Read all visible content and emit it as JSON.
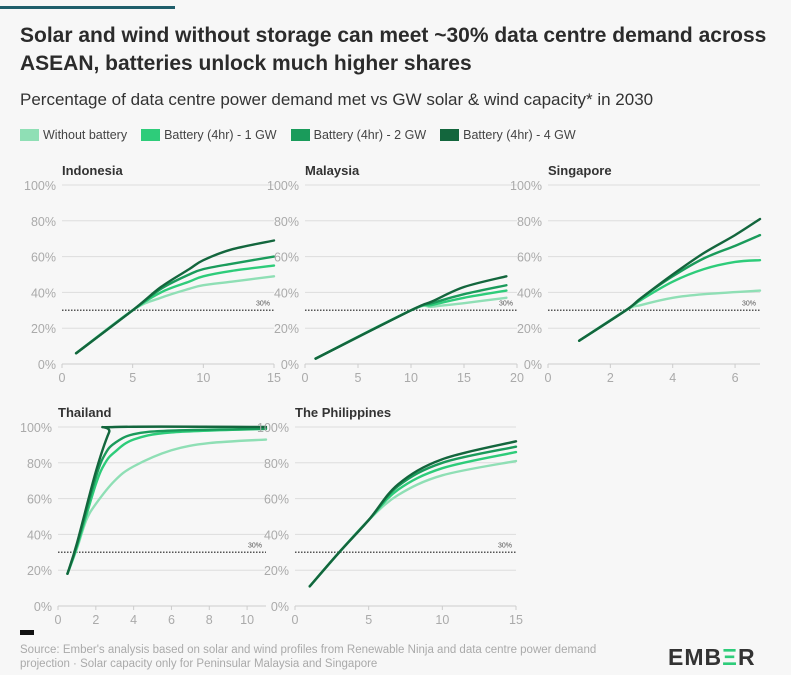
{
  "title": "Solar and wind without storage can meet ~30% data centre demand across ASEAN, batteries unlock much higher shares",
  "subtitle": "Percentage of data centre power demand met vs GW solar & wind capacity* in 2030",
  "source": "Source: Ember's analysis based on solar and wind profiles from Renewable Ninja and data centre power demand projection · Solar capacity only for Peninsular Malaysia and Singapore",
  "logo": "EMBER",
  "colors": {
    "accent": "#1f5e6b",
    "none": "#8fdfb5",
    "b1": "#2ecc7a",
    "b2": "#1a9b5b",
    "b4": "#13663d"
  },
  "chart_data": {
    "type": "line",
    "legend": [
      "Without battery",
      "Battery (4hr) - 1 GW",
      "Battery (4hr) - 2 GW",
      "Battery (4hr) - 4 GW"
    ],
    "legend_placement": "top-left",
    "reference_line": {
      "value": 30,
      "label": "30%"
    },
    "ylim": [
      0,
      100
    ],
    "yticks": [
      "0%",
      "20%",
      "40%",
      "60%",
      "80%",
      "100%"
    ],
    "panels": [
      {
        "name": "Indonesia",
        "xlim": [
          0,
          15
        ],
        "xticks": [
          0,
          5,
          10,
          15
        ],
        "series": [
          {
            "name": "Without battery",
            "points": [
              [
                1,
                6
              ],
              [
                5,
                30
              ],
              [
                7,
                37
              ],
              [
                9,
                42
              ],
              [
                10,
                44
              ],
              [
                12,
                46
              ],
              [
                15,
                49
              ]
            ]
          },
          {
            "name": "Battery (4hr) - 1 GW",
            "points": [
              [
                1,
                6
              ],
              [
                5,
                30
              ],
              [
                7,
                40
              ],
              [
                9,
                46
              ],
              [
                10,
                49
              ],
              [
                12,
                52
              ],
              [
                15,
                55
              ]
            ]
          },
          {
            "name": "Battery (4hr) - 2 GW",
            "points": [
              [
                1,
                6
              ],
              [
                5,
                30
              ],
              [
                7,
                42
              ],
              [
                9,
                50
              ],
              [
                10,
                53
              ],
              [
                12,
                56
              ],
              [
                15,
                60
              ]
            ]
          },
          {
            "name": "Battery (4hr) - 4 GW",
            "points": [
              [
                1,
                6
              ],
              [
                5,
                30
              ],
              [
                7,
                43
              ],
              [
                9,
                53
              ],
              [
                10,
                58
              ],
              [
                12,
                64
              ],
              [
                15,
                69
              ]
            ]
          }
        ]
      },
      {
        "name": "Malaysia",
        "xlim": [
          0,
          20
        ],
        "xticks": [
          0,
          5,
          10,
          15,
          20
        ],
        "series": [
          {
            "name": "Without battery",
            "points": [
              [
                1,
                3
              ],
              [
                10,
                30
              ],
              [
                12,
                32
              ],
              [
                15,
                34
              ],
              [
                19,
                37
              ]
            ]
          },
          {
            "name": "Battery (4hr) - 1 GW",
            "points": [
              [
                1,
                3
              ],
              [
                10,
                30
              ],
              [
                12,
                33
              ],
              [
                15,
                37
              ],
              [
                19,
                41
              ]
            ]
          },
          {
            "name": "Battery (4hr) - 2 GW",
            "points": [
              [
                1,
                3
              ],
              [
                10,
                30
              ],
              [
                12,
                34
              ],
              [
                15,
                39
              ],
              [
                19,
                44
              ]
            ]
          },
          {
            "name": "Battery (4hr) - 4 GW",
            "points": [
              [
                1,
                3
              ],
              [
                10,
                30
              ],
              [
                12,
                35
              ],
              [
                15,
                43
              ],
              [
                19,
                49
              ]
            ]
          }
        ]
      },
      {
        "name": "Singapore",
        "xlim": [
          0,
          6.8
        ],
        "xticks": [
          0,
          2,
          4,
          6
        ],
        "series": [
          {
            "name": "Without battery",
            "points": [
              [
                1,
                13
              ],
              [
                2.5,
                30
              ],
              [
                3,
                33
              ],
              [
                4,
                37
              ],
              [
                5,
                39
              ],
              [
                6.8,
                41
              ]
            ]
          },
          {
            "name": "Battery (4hr) - 1 GW",
            "points": [
              [
                1,
                13
              ],
              [
                2.5,
                30
              ],
              [
                3,
                36
              ],
              [
                4,
                46
              ],
              [
                5,
                53
              ],
              [
                6,
                57
              ],
              [
                6.8,
                58
              ]
            ]
          },
          {
            "name": "Battery (4hr) - 2 GW",
            "points": [
              [
                1,
                13
              ],
              [
                2.5,
                30
              ],
              [
                3,
                37
              ],
              [
                4,
                49
              ],
              [
                5,
                59
              ],
              [
                6,
                66
              ],
              [
                6.8,
                72
              ]
            ]
          },
          {
            "name": "Battery (4hr) - 4 GW",
            "points": [
              [
                1,
                13
              ],
              [
                2.5,
                30
              ],
              [
                3,
                37
              ],
              [
                4,
                50
              ],
              [
                5,
                62
              ],
              [
                6,
                72
              ],
              [
                6.8,
                81
              ]
            ]
          }
        ]
      },
      {
        "name": "Thailand",
        "xlim": [
          0,
          11
        ],
        "xticks": [
          0,
          2,
          4,
          6,
          8,
          10
        ],
        "series": [
          {
            "name": "Without battery",
            "points": [
              [
                0.5,
                18
              ],
              [
                1,
                32
              ],
              [
                1.5,
                48
              ],
              [
                2,
                57
              ],
              [
                3,
                70
              ],
              [
                4,
                78
              ],
              [
                6,
                87
              ],
              [
                8,
                91
              ],
              [
                11,
                93
              ]
            ]
          },
          {
            "name": "Battery (4hr) - 1 GW",
            "points": [
              [
                0.5,
                18
              ],
              [
                1,
                33
              ],
              [
                2,
                68
              ],
              [
                2.5,
                80
              ],
              [
                3,
                86
              ],
              [
                4,
                93
              ],
              [
                6,
                97
              ],
              [
                11,
                99
              ]
            ]
          },
          {
            "name": "Battery (4hr) - 2 GW",
            "points": [
              [
                0.5,
                18
              ],
              [
                1,
                34
              ],
              [
                2,
                72
              ],
              [
                2.5,
                85
              ],
              [
                3,
                91
              ],
              [
                4,
                96
              ],
              [
                6,
                98
              ],
              [
                11,
                99
              ]
            ]
          },
          {
            "name": "Battery (4hr) - 4 GW",
            "points": [
              [
                0.5,
                18
              ],
              [
                1,
                35
              ],
              [
                2,
                75
              ],
              [
                2.7,
                97
              ],
              [
                3,
                100
              ],
              [
                11,
                100
              ]
            ]
          }
        ]
      },
      {
        "name": "The Philippines",
        "xlim": [
          0,
          15
        ],
        "xticks": [
          0,
          5,
          10,
          15
        ],
        "series": [
          {
            "name": "Without battery",
            "points": [
              [
                1,
                11
              ],
              [
                3,
                30
              ],
              [
                5,
                48
              ],
              [
                7,
                62
              ],
              [
                10,
                73
              ],
              [
                15,
                81
              ]
            ]
          },
          {
            "name": "Battery (4hr) - 1 GW",
            "points": [
              [
                1,
                11
              ],
              [
                3,
                30
              ],
              [
                5,
                48
              ],
              [
                7,
                65
              ],
              [
                10,
                77
              ],
              [
                15,
                86
              ]
            ]
          },
          {
            "name": "Battery (4hr) - 2 GW",
            "points": [
              [
                1,
                11
              ],
              [
                3,
                30
              ],
              [
                5,
                48
              ],
              [
                7,
                67
              ],
              [
                10,
                80
              ],
              [
                15,
                89
              ]
            ]
          },
          {
            "name": "Battery (4hr) - 4 GW",
            "points": [
              [
                1,
                11
              ],
              [
                3,
                30
              ],
              [
                5,
                48
              ],
              [
                7,
                68
              ],
              [
                10,
                82
              ],
              [
                15,
                92
              ]
            ]
          }
        ]
      }
    ]
  }
}
